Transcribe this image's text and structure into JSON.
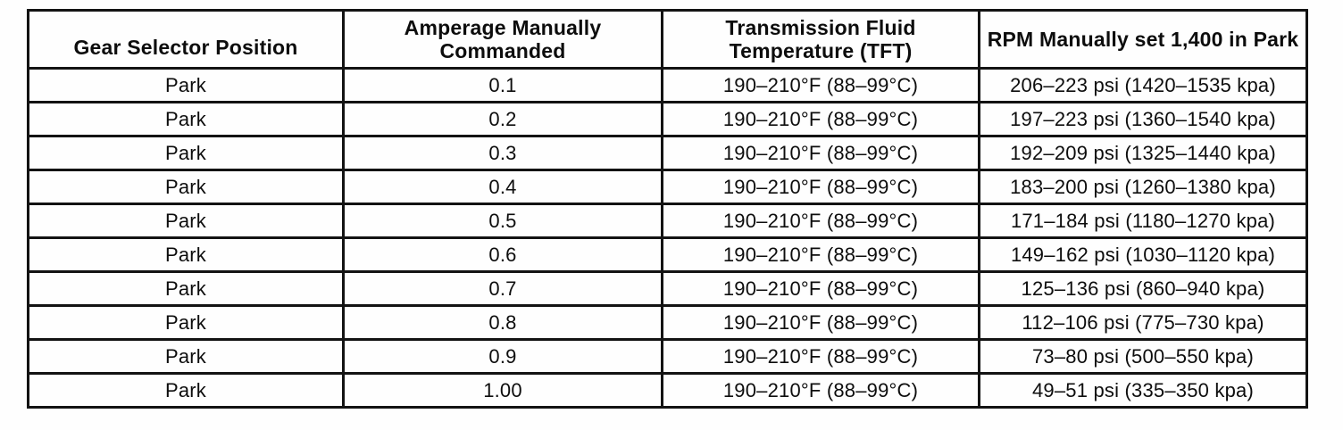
{
  "colors": {
    "ink": "#131313",
    "paper": "#fefefe"
  },
  "table": {
    "headers": [
      "Gear Selector Position",
      "Amperage Manually Commanded",
      "Transmission Fluid Temperature (TFT)",
      "RPM Manually set 1,400 in Park"
    ],
    "rows": [
      {
        "gear_selector_position": "Park",
        "amperage": "0.1",
        "tft": "190–210°F (88–99°C)",
        "pressure": "206–223 psi (1420–1535 kpa)"
      },
      {
        "gear_selector_position": "Park",
        "amperage": "0.2",
        "tft": "190–210°F (88–99°C)",
        "pressure": "197–223 psi (1360–1540 kpa)"
      },
      {
        "gear_selector_position": "Park",
        "amperage": "0.3",
        "tft": "190–210°F (88–99°C)",
        "pressure": "192–209 psi (1325–1440 kpa)"
      },
      {
        "gear_selector_position": "Park",
        "amperage": "0.4",
        "tft": "190–210°F (88–99°C)",
        "pressure": "183–200 psi (1260–1380 kpa)"
      },
      {
        "gear_selector_position": "Park",
        "amperage": "0.5",
        "tft": "190–210°F (88–99°C)",
        "pressure": "171–184 psi (1180–1270 kpa)"
      },
      {
        "gear_selector_position": "Park",
        "amperage": "0.6",
        "tft": "190–210°F (88–99°C)",
        "pressure": "149–162 psi (1030–1120 kpa)"
      },
      {
        "gear_selector_position": "Park",
        "amperage": "0.7",
        "tft": "190–210°F (88–99°C)",
        "pressure": "125–136 psi (860–940 kpa)"
      },
      {
        "gear_selector_position": "Park",
        "amperage": "0.8",
        "tft": "190–210°F (88–99°C)",
        "pressure": "112–106 psi (775–730 kpa)"
      },
      {
        "gear_selector_position": "Park",
        "amperage": "0.9",
        "tft": "190–210°F (88–99°C)",
        "pressure": "73–80 psi (500–550 kpa)"
      },
      {
        "gear_selector_position": "Park",
        "amperage": "1.00",
        "tft": "190–210°F (88–99°C)",
        "pressure": "49–51 psi (335–350 kpa)"
      }
    ]
  }
}
